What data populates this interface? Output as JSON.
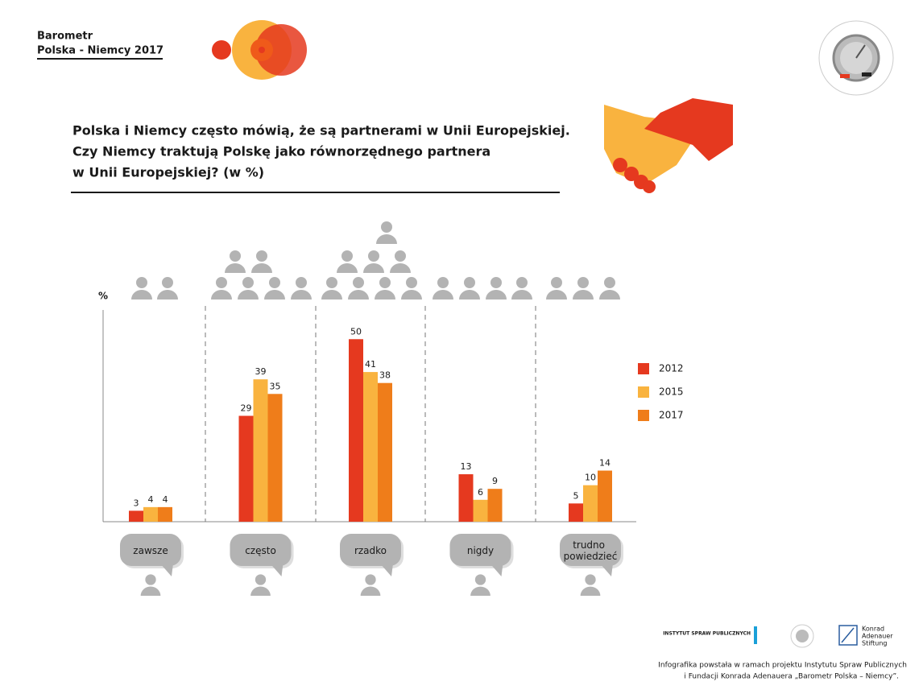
{
  "header": {
    "line1": "Barometr",
    "line2": "Polska - Niemcy 2017"
  },
  "chart_data": {
    "type": "bar",
    "title": [
      "Polska i Niemcy często mówią, że są partnerami w Unii Europejskiej.",
      "Czy Niemcy traktują Polskę jako równorzędnego partnera",
      "w Unii Europejskiej? (w %)"
    ],
    "y_label": "%",
    "categories": [
      "zawsze",
      "często",
      "rzadko",
      "nigdy",
      "trudno powiedzieć"
    ],
    "series": [
      {
        "name": "2012",
        "color": "#e5391f",
        "values": [
          3,
          29,
          50,
          13,
          5
        ]
      },
      {
        "name": "2015",
        "color": "#f9b33f",
        "values": [
          4,
          39,
          41,
          6,
          10
        ]
      },
      {
        "name": "2017",
        "color": "#ef7d1a",
        "values": [
          4,
          35,
          38,
          9,
          14
        ]
      }
    ],
    "ylim": [
      0,
      58
    ]
  },
  "logos": {
    "isp": "INSTYTUT SPRAW PUBLICZNYCH",
    "kas": [
      "Konrad",
      "Adenauer",
      "Stiftung"
    ]
  },
  "footer": [
    "Infografika powstała w ramach projektu Instytutu Spraw Publicznych",
    "i Fundacji Konrada Adenauera „Barometr Polska – Niemcy”."
  ]
}
